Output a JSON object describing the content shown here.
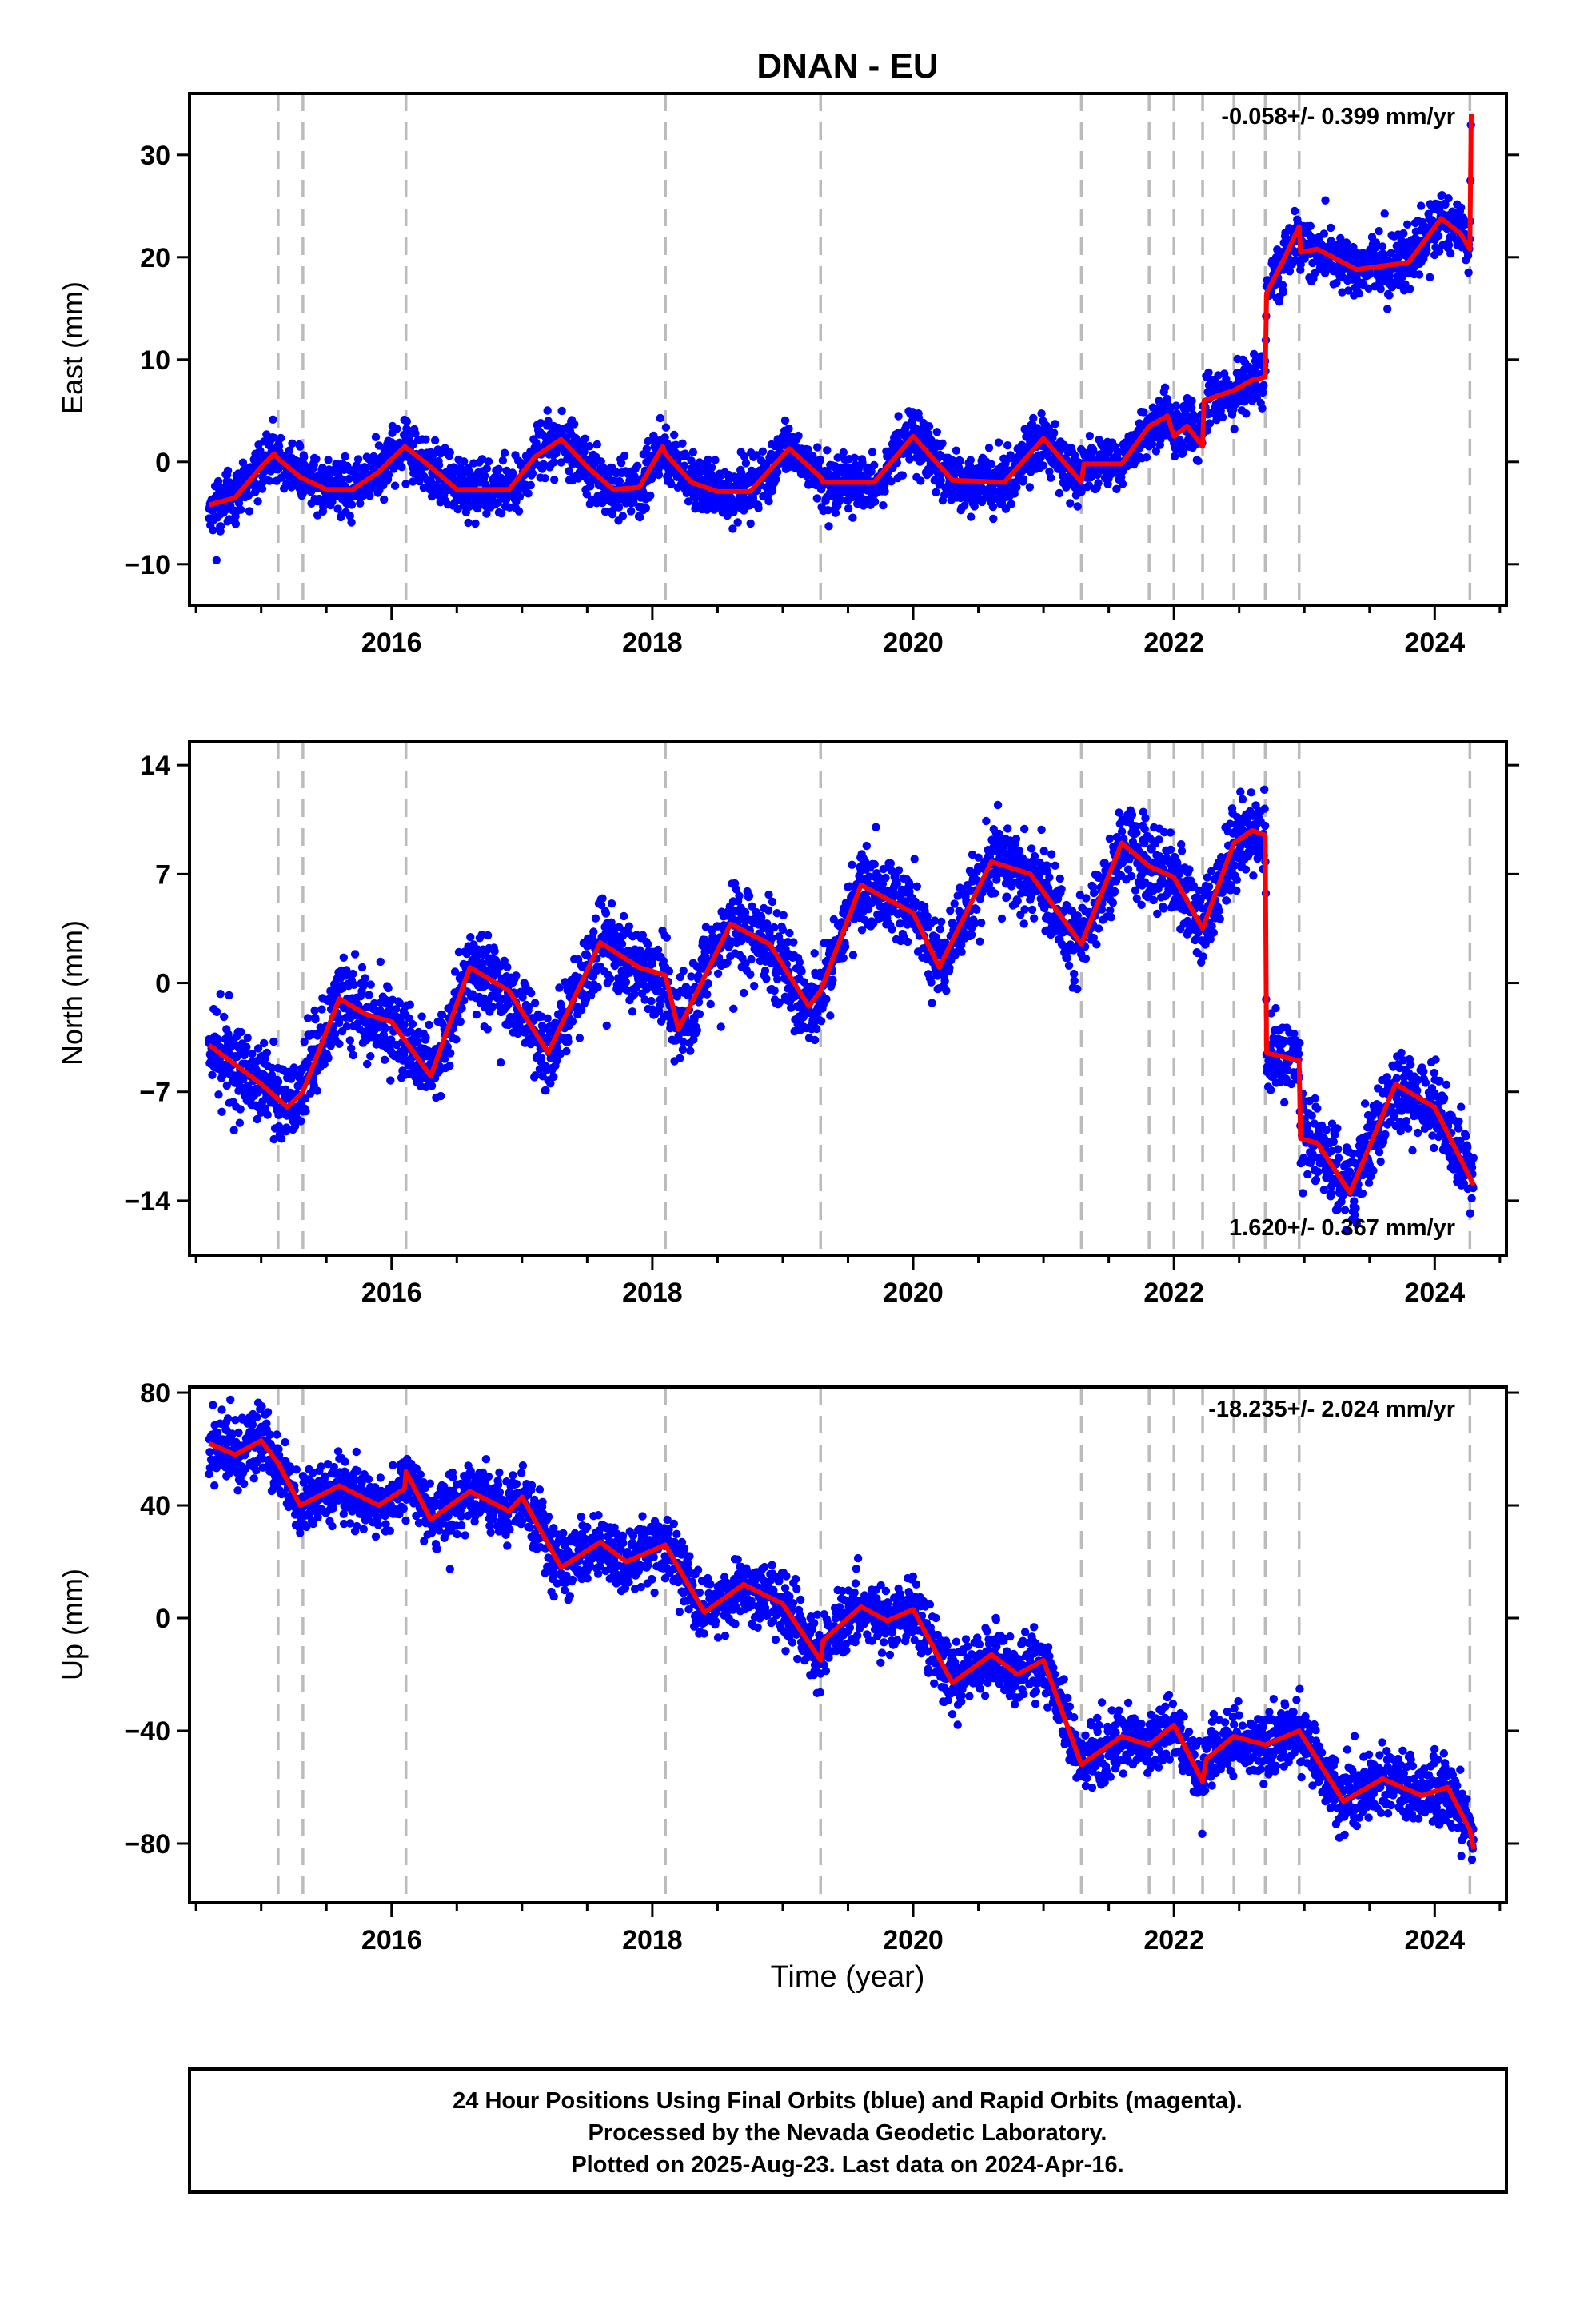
{
  "title": "DNAN - EU",
  "xlabel": "Time (year)",
  "footer": {
    "line1": "24 Hour Positions Using Final Orbits (blue) and Rapid Orbits (magenta).",
    "line2": "Processed by the Nevada Geodetic Laboratory.",
    "line3": "Plotted on 2025-Aug-23. Last data on 2024-Apr-16."
  },
  "colors": {
    "data": "#0000ff",
    "model": "#ff0000",
    "steps": "#bbbbbb",
    "frame": "#000000"
  },
  "chart_data": [
    {
      "type": "scatter",
      "id": "east",
      "ylabel": "East (mm)",
      "rate": "-0.058+/- 0.399 mm/yr",
      "rate_position": "top-right",
      "xlim": [
        2014.45,
        2024.55
      ],
      "ylim": [
        -14,
        36
      ],
      "yticks": [
        -10,
        0,
        10,
        20,
        30
      ],
      "xticks": [
        2016,
        2018,
        2020,
        2022,
        2024
      ],
      "step_epochs": [
        2015.13,
        2015.32,
        2016.11,
        2018.1,
        2019.29,
        2021.29,
        2021.81,
        2022.0,
        2022.22,
        2022.46,
        2022.7,
        2022.96,
        2024.27
      ],
      "model": [
        [
          2014.6,
          -4.2
        ],
        [
          2014.8,
          -3.5
        ],
        [
          2015.0,
          -0.5
        ],
        [
          2015.1,
          0.8
        ],
        [
          2015.13,
          0.3
        ],
        [
          2015.3,
          -1.5
        ],
        [
          2015.5,
          -2.7
        ],
        [
          2015.7,
          -2.7
        ],
        [
          2015.9,
          -1.0
        ],
        [
          2016.1,
          1.5
        ],
        [
          2016.3,
          -0.5
        ],
        [
          2016.5,
          -2.7
        ],
        [
          2016.9,
          -2.7
        ],
        [
          2017.1,
          0.5
        ],
        [
          2017.3,
          2.2
        ],
        [
          2017.5,
          -0.5
        ],
        [
          2017.7,
          -2.7
        ],
        [
          2017.9,
          -2.5
        ],
        [
          2018.08,
          1.5
        ],
        [
          2018.1,
          0.8
        ],
        [
          2018.3,
          -2.0
        ],
        [
          2018.5,
          -2.9
        ],
        [
          2018.75,
          -2.9
        ],
        [
          2019.05,
          1.3
        ],
        [
          2019.29,
          -1.5
        ],
        [
          2019.31,
          -2.0
        ],
        [
          2019.7,
          -2.0
        ],
        [
          2020.0,
          2.5
        ],
        [
          2020.3,
          -1.8
        ],
        [
          2020.7,
          -2.0
        ],
        [
          2021.0,
          2.3
        ],
        [
          2021.29,
          -2.0
        ],
        [
          2021.31,
          -0.2
        ],
        [
          2021.6,
          -0.2
        ],
        [
          2021.81,
          3.5
        ],
        [
          2021.95,
          4.5
        ],
        [
          2022.0,
          2.5
        ],
        [
          2022.1,
          3.5
        ],
        [
          2022.22,
          1.5
        ],
        [
          2022.23,
          6.0
        ],
        [
          2022.46,
          7.0
        ],
        [
          2022.6,
          8.0
        ],
        [
          2022.7,
          8.3
        ],
        [
          2022.71,
          16.5
        ],
        [
          2022.85,
          20.0
        ],
        [
          2022.96,
          23.0
        ],
        [
          2022.97,
          20.5
        ],
        [
          2023.1,
          20.8
        ],
        [
          2023.4,
          18.8
        ],
        [
          2023.8,
          19.5
        ],
        [
          2024.05,
          23.8
        ],
        [
          2024.2,
          22.3
        ],
        [
          2024.27,
          20.8
        ],
        [
          2024.28,
          34.0
        ]
      ],
      "scatter_seed": 11,
      "scatter_sigma": 1.3
    },
    {
      "type": "scatter",
      "id": "north",
      "ylabel": "North (mm)",
      "rate": "1.620+/- 0.367 mm/yr",
      "rate_position": "bottom-right",
      "xlim": [
        2014.45,
        2024.55
      ],
      "ylim": [
        -17.5,
        15.5
      ],
      "yticks": [
        -14,
        -7,
        0,
        7,
        14
      ],
      "xticks": [
        2016,
        2018,
        2020,
        2022,
        2024
      ],
      "step_epochs": [
        2015.13,
        2015.32,
        2016.11,
        2018.1,
        2019.29,
        2021.29,
        2021.81,
        2022.0,
        2022.22,
        2022.46,
        2022.7,
        2022.96,
        2024.27
      ],
      "model": [
        [
          2014.6,
          -4.0
        ],
        [
          2015.0,
          -6.5
        ],
        [
          2015.2,
          -8.0
        ],
        [
          2015.32,
          -7.0
        ],
        [
          2015.6,
          -1.0
        ],
        [
          2015.8,
          -2.0
        ],
        [
          2016.0,
          -2.5
        ],
        [
          2016.3,
          -6.0
        ],
        [
          2016.6,
          1.0
        ],
        [
          2016.9,
          -0.5
        ],
        [
          2017.2,
          -4.5
        ],
        [
          2017.6,
          2.6
        ],
        [
          2017.9,
          1.0
        ],
        [
          2018.1,
          0.5
        ],
        [
          2018.2,
          -3.0
        ],
        [
          2018.6,
          3.8
        ],
        [
          2018.9,
          2.5
        ],
        [
          2019.2,
          -1.5
        ],
        [
          2019.29,
          -0.5
        ],
        [
          2019.6,
          6.3
        ],
        [
          2020.0,
          4.5
        ],
        [
          2020.2,
          1.0
        ],
        [
          2020.6,
          7.8
        ],
        [
          2020.9,
          7.0
        ],
        [
          2021.29,
          2.5
        ],
        [
          2021.6,
          9.0
        ],
        [
          2021.81,
          7.5
        ],
        [
          2022.0,
          6.8
        ],
        [
          2022.22,
          3.5
        ],
        [
          2022.46,
          9.0
        ],
        [
          2022.6,
          9.8
        ],
        [
          2022.7,
          9.5
        ],
        [
          2022.71,
          -4.5
        ],
        [
          2022.96,
          -5.0
        ],
        [
          2022.97,
          -10.0
        ],
        [
          2023.1,
          -10.3
        ],
        [
          2023.35,
          -13.5
        ],
        [
          2023.7,
          -6.5
        ],
        [
          2024.0,
          -8.0
        ],
        [
          2024.27,
          -12.5
        ],
        [
          2024.3,
          -13.0
        ]
      ],
      "scatter_seed": 23,
      "scatter_sigma": 1.3
    },
    {
      "type": "scatter",
      "id": "up",
      "ylabel": "Up (mm)",
      "rate": "-18.235+/- 2.024 mm/yr",
      "rate_position": "top-right",
      "xlim": [
        2014.45,
        2024.55
      ],
      "ylim": [
        -101,
        82
      ],
      "yticks": [
        -80,
        -40,
        0,
        40,
        80
      ],
      "xticks": [
        2016,
        2018,
        2020,
        2022,
        2024
      ],
      "step_epochs": [
        2015.13,
        2015.32,
        2016.11,
        2018.1,
        2019.29,
        2021.29,
        2021.81,
        2022.0,
        2022.22,
        2022.46,
        2022.7,
        2022.96,
        2024.27
      ],
      "model": [
        [
          2014.6,
          62
        ],
        [
          2014.8,
          58
        ],
        [
          2015.0,
          63
        ],
        [
          2015.13,
          55
        ],
        [
          2015.3,
          40
        ],
        [
          2015.6,
          47
        ],
        [
          2015.9,
          40
        ],
        [
          2016.1,
          46
        ],
        [
          2016.11,
          52
        ],
        [
          2016.3,
          35
        ],
        [
          2016.6,
          45
        ],
        [
          2016.9,
          38
        ],
        [
          2017.0,
          43
        ],
        [
          2017.3,
          18
        ],
        [
          2017.6,
          27
        ],
        [
          2017.8,
          20
        ],
        [
          2018.1,
          26
        ],
        [
          2018.4,
          2
        ],
        [
          2018.7,
          12
        ],
        [
          2019.0,
          5
        ],
        [
          2019.29,
          -15
        ],
        [
          2019.31,
          -8
        ],
        [
          2019.6,
          4
        ],
        [
          2019.8,
          -1
        ],
        [
          2020.0,
          3
        ],
        [
          2020.3,
          -23
        ],
        [
          2020.6,
          -13
        ],
        [
          2020.8,
          -20
        ],
        [
          2021.0,
          -15
        ],
        [
          2021.29,
          -52
        ],
        [
          2021.6,
          -42
        ],
        [
          2021.81,
          -45
        ],
        [
          2022.0,
          -38
        ],
        [
          2022.22,
          -58
        ],
        [
          2022.25,
          -50
        ],
        [
          2022.46,
          -42
        ],
        [
          2022.7,
          -45
        ],
        [
          2022.96,
          -40
        ],
        [
          2023.3,
          -65
        ],
        [
          2023.6,
          -57
        ],
        [
          2023.9,
          -63
        ],
        [
          2024.1,
          -60
        ],
        [
          2024.27,
          -75
        ],
        [
          2024.3,
          -82
        ]
      ],
      "scatter_seed": 37,
      "scatter_sigma": 5.5
    }
  ]
}
